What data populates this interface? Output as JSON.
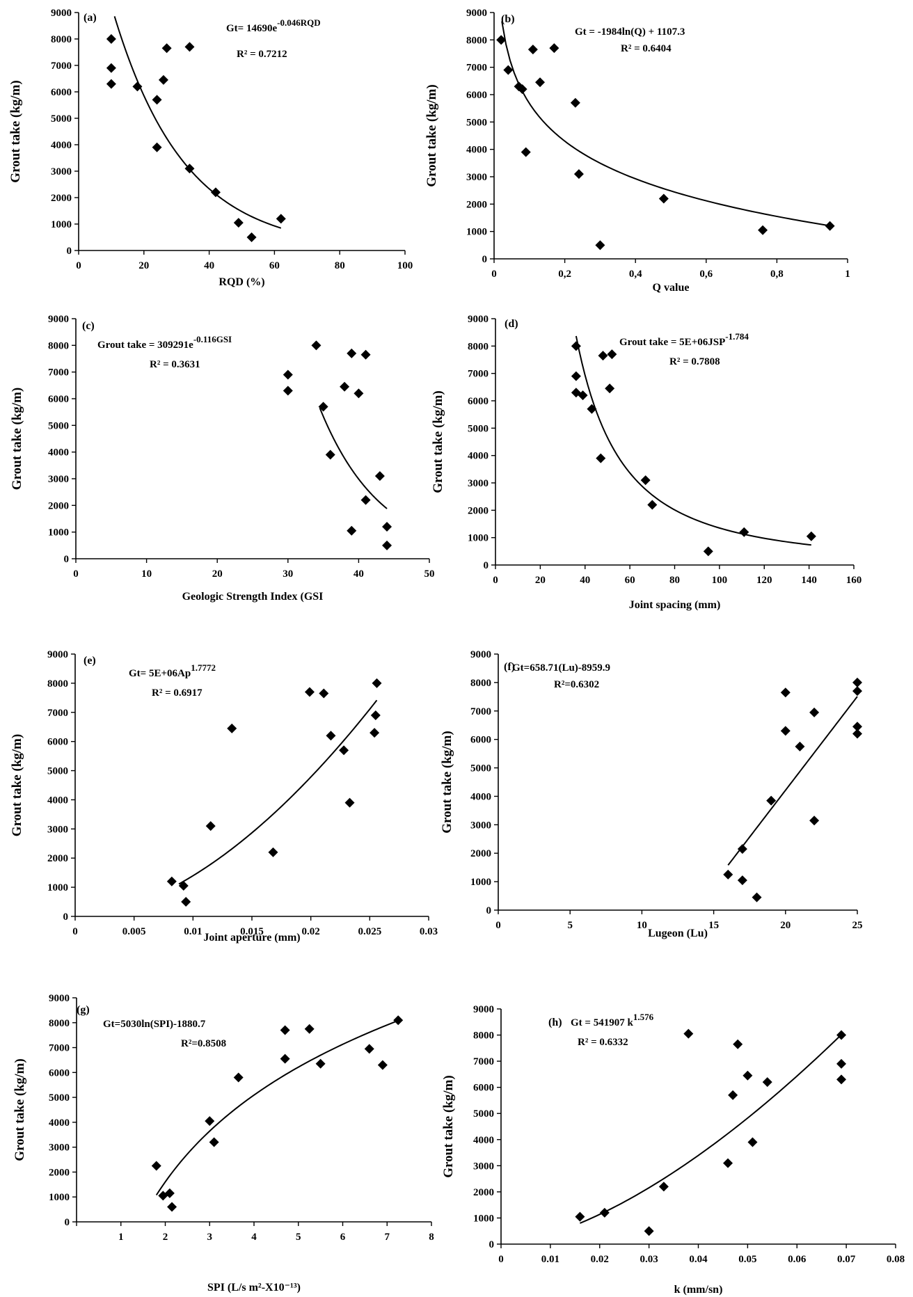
{
  "chart_data": [
    {
      "id": "a",
      "type": "scatter",
      "panel_label": "(a)",
      "xlabel": "RQD (%)",
      "ylabel": "Grout take (kg/m)",
      "xlim": [
        0,
        100
      ],
      "ylim": [
        0,
        9000
      ],
      "xticks": [
        0,
        20,
        40,
        60,
        80,
        100
      ],
      "xtick_labels": [
        "0",
        "20",
        "40",
        "60",
        "80",
        "100"
      ],
      "yticks": [
        0,
        1000,
        2000,
        3000,
        4000,
        5000,
        6000,
        7000,
        8000,
        9000
      ],
      "ytick_labels": [
        "0",
        "1000",
        "2000",
        "3000",
        "4000",
        "5000",
        "6000",
        "7000",
        "8000",
        "9000"
      ],
      "points": [
        [
          10,
          8000
        ],
        [
          10,
          6900
        ],
        [
          10,
          6300
        ],
        [
          18,
          6200
        ],
        [
          24,
          5700
        ],
        [
          24,
          3900
        ],
        [
          26,
          6450
        ],
        [
          27,
          7650
        ],
        [
          34,
          7700
        ],
        [
          34,
          3100
        ],
        [
          42,
          2200
        ],
        [
          49,
          1050
        ],
        [
          53,
          500
        ],
        [
          62,
          1200
        ]
      ],
      "fit": {
        "kind": "exp",
        "a": 14690,
        "b": -0.046,
        "x_range": [
          11,
          62
        ]
      },
      "equation": "Gt= 14690e",
      "equation_sup": "-0.046RQD",
      "r2": "R² = 0.7212"
    },
    {
      "id": "b",
      "type": "scatter",
      "panel_label": "(b)",
      "xlabel": "Q value",
      "ylabel": "Grout take (kg/m)",
      "xlim": [
        0,
        1
      ],
      "ylim": [
        0,
        9000
      ],
      "xticks": [
        0,
        0.2,
        0.4,
        0.6,
        0.8,
        1
      ],
      "xtick_labels": [
        "0",
        "0,2",
        "0,4",
        "0,6",
        "0,8",
        "1"
      ],
      "yticks": [
        0,
        1000,
        2000,
        3000,
        4000,
        5000,
        6000,
        7000,
        8000,
        9000
      ],
      "ytick_labels": [
        "0",
        "1000",
        "2000",
        "3000",
        "4000",
        "5000",
        "6000",
        "7000",
        "8000",
        "9000"
      ],
      "points": [
        [
          0.02,
          8000
        ],
        [
          0.04,
          6900
        ],
        [
          0.07,
          6300
        ],
        [
          0.08,
          6200
        ],
        [
          0.09,
          3900
        ],
        [
          0.11,
          7650
        ],
        [
          0.13,
          6450
        ],
        [
          0.17,
          7700
        ],
        [
          0.23,
          5700
        ],
        [
          0.24,
          3100
        ],
        [
          0.3,
          500
        ],
        [
          0.48,
          2200
        ],
        [
          0.76,
          1050
        ],
        [
          0.95,
          1200
        ]
      ],
      "fit": {
        "kind": "ln",
        "a": -1984,
        "b": 1107.3,
        "x_range": [
          0.022,
          0.95
        ]
      },
      "equation": "Gt = -1984ln(Q) + 1107.3",
      "r2": "R² = 0.6404"
    },
    {
      "id": "c",
      "type": "scatter",
      "panel_label": "(c)",
      "xlabel": "Geologic Strength Index (GSI",
      "ylabel": "Grout take (kg/m)",
      "xlim": [
        0,
        50
      ],
      "ylim": [
        0,
        9000
      ],
      "xticks": [
        0,
        10,
        20,
        30,
        40,
        50
      ],
      "xtick_labels": [
        "0",
        "10",
        "20",
        "30",
        "40",
        "50"
      ],
      "yticks": [
        0,
        1000,
        2000,
        3000,
        4000,
        5000,
        6000,
        7000,
        8000,
        9000
      ],
      "ytick_labels": [
        "0",
        "1000",
        "2000",
        "3000",
        "4000",
        "5000",
        "6000",
        "7000",
        "8000",
        "9000"
      ],
      "points": [
        [
          30,
          6900
        ],
        [
          30,
          6300
        ],
        [
          34,
          8000
        ],
        [
          35,
          5700
        ],
        [
          36,
          3900
        ],
        [
          38,
          6450
        ],
        [
          39,
          7700
        ],
        [
          40,
          6200
        ],
        [
          41,
          7650
        ],
        [
          41,
          2200
        ],
        [
          39,
          1050
        ],
        [
          43,
          3100
        ],
        [
          44,
          1200
        ],
        [
          44,
          500
        ]
      ],
      "fit": {
        "kind": "exp",
        "a": 309291,
        "b": -0.116,
        "x_range": [
          34.5,
          44
        ]
      },
      "equation": "Grout take  = 309291e",
      "equation_sup": "-0.116GSI",
      "r2": "R² = 0.3631"
    },
    {
      "id": "d",
      "type": "scatter",
      "panel_label": "(d)",
      "xlabel": "Joint spacing (mm)",
      "ylabel": "Grout take (kg/m)",
      "xlim": [
        0,
        160
      ],
      "ylim": [
        0,
        9000
      ],
      "xticks": [
        0,
        20,
        40,
        60,
        80,
        100,
        120,
        140,
        160
      ],
      "xtick_labels": [
        "0",
        "20",
        "40",
        "60",
        "80",
        "100",
        "120",
        "140",
        "160"
      ],
      "yticks": [
        0,
        1000,
        2000,
        3000,
        4000,
        5000,
        6000,
        7000,
        8000,
        9000
      ],
      "ytick_labels": [
        "0",
        "1000",
        "2000",
        "3000",
        "4000",
        "5000",
        "6000",
        "7000",
        "8000",
        "9000"
      ],
      "points": [
        [
          36,
          8000
        ],
        [
          36,
          6900
        ],
        [
          36,
          6300
        ],
        [
          39,
          6200
        ],
        [
          43,
          5700
        ],
        [
          47,
          3900
        ],
        [
          48,
          7650
        ],
        [
          51,
          6450
        ],
        [
          52,
          7700
        ],
        [
          67,
          3100
        ],
        [
          70,
          2200
        ],
        [
          95,
          500
        ],
        [
          111,
          1200
        ],
        [
          141,
          1050
        ]
      ],
      "fit": {
        "kind": "pow",
        "a": 5000000,
        "b": -1.784,
        "x_range": [
          36,
          141
        ]
      },
      "equation": "Grout take = 5E+06JSP",
      "equation_sup": "-1.784",
      "r2": "R² = 0.7808"
    },
    {
      "id": "e",
      "type": "scatter",
      "panel_label": "(e)",
      "xlabel": "Joint aperture (mm)",
      "ylabel": "Grout take (kg/m)",
      "xlim": [
        0,
        0.03
      ],
      "ylim": [
        0,
        9000
      ],
      "xticks": [
        0,
        0.005,
        0.01,
        0.015,
        0.02,
        0.025,
        0.03
      ],
      "xtick_labels": [
        "0",
        "0.005",
        "0.01",
        "0.015",
        "0.02",
        "0.025",
        "0.03"
      ],
      "yticks": [
        0,
        1000,
        2000,
        3000,
        4000,
        5000,
        6000,
        7000,
        8000,
        9000
      ],
      "ytick_labels": [
        "0",
        "1000",
        "2000",
        "3000",
        "4000",
        "5000",
        "6000",
        "7000",
        "8000",
        "9000"
      ],
      "points": [
        [
          0.0082,
          1200
        ],
        [
          0.0092,
          1050
        ],
        [
          0.0094,
          500
        ],
        [
          0.0115,
          3100
        ],
        [
          0.0133,
          6450
        ],
        [
          0.0168,
          2200
        ],
        [
          0.0199,
          7700
        ],
        [
          0.0211,
          7650
        ],
        [
          0.0217,
          6200
        ],
        [
          0.0228,
          5700
        ],
        [
          0.0233,
          3900
        ],
        [
          0.0254,
          6300
        ],
        [
          0.0255,
          6900
        ],
        [
          0.0256,
          8000
        ]
      ],
      "fit": {
        "kind": "pow",
        "a": 5000000,
        "b": 1.7772,
        "x_range": [
          0.0088,
          0.0256
        ]
      },
      "equation": "Gt= 5E+06Ap",
      "equation_sup": "1.7772",
      "r2": "R² = 0.6917"
    },
    {
      "id": "f",
      "type": "scatter",
      "panel_label": "(f)",
      "xlabel": "Lugeon (Lu)",
      "ylabel": "Grout take (kg/m)",
      "xlim": [
        0,
        25
      ],
      "ylim": [
        0,
        9000
      ],
      "xticks": [
        0,
        5,
        10,
        15,
        20,
        25
      ],
      "xtick_labels": [
        "0",
        "5",
        "10",
        "15",
        "20",
        "25"
      ],
      "yticks": [
        0,
        1000,
        2000,
        3000,
        4000,
        5000,
        6000,
        7000,
        8000,
        9000
      ],
      "ytick_labels": [
        "0",
        "1000",
        "2000",
        "3000",
        "4000",
        "5000",
        "6000",
        "7000",
        "8000",
        "9000"
      ],
      "points": [
        [
          16,
          1250
        ],
        [
          17,
          2150
        ],
        [
          17,
          1050
        ],
        [
          18,
          450
        ],
        [
          19,
          3850
        ],
        [
          20,
          7650
        ],
        [
          20,
          6300
        ],
        [
          21,
          5750
        ],
        [
          22,
          6950
        ],
        [
          22,
          3150
        ],
        [
          25,
          8000
        ],
        [
          25,
          7700
        ],
        [
          25,
          6450
        ],
        [
          25,
          6200
        ]
      ],
      "fit": {
        "kind": "lin",
        "a": 658.71,
        "b": -8959.9,
        "x_range": [
          16,
          25
        ]
      },
      "equation": "Gt=658.71(Lu)-8959.9",
      "r2": "R²=0.6302"
    },
    {
      "id": "g",
      "type": "scatter",
      "panel_label": "(g)",
      "xlabel": "SPI (L/s m²-X10⁻¹³)",
      "ylabel": "Grout take (kg/m)",
      "xlim": [
        0,
        8
      ],
      "ylim": [
        0,
        9000
      ],
      "xticks": [
        0,
        1,
        2,
        3,
        4,
        5,
        6,
        7,
        8
      ],
      "xtick_labels": [
        "",
        "1",
        "2",
        "3",
        "4",
        "5",
        "6",
        "7",
        "8"
      ],
      "yticks": [
        0,
        1000,
        2000,
        3000,
        4000,
        5000,
        6000,
        7000,
        8000,
        9000
      ],
      "ytick_labels": [
        "0",
        "1000",
        "2000",
        "3000",
        "4000",
        "5000",
        "6000",
        "7000",
        "8000",
        "9000"
      ],
      "points": [
        [
          1.8,
          2250
        ],
        [
          1.95,
          1050
        ],
        [
          2.1,
          1150
        ],
        [
          2.15,
          600
        ],
        [
          3.0,
          4050
        ],
        [
          3.1,
          3200
        ],
        [
          3.65,
          5800
        ],
        [
          4.7,
          7700
        ],
        [
          4.7,
          6550
        ],
        [
          5.25,
          7750
        ],
        [
          5.5,
          6350
        ],
        [
          6.6,
          6950
        ],
        [
          6.9,
          6300
        ],
        [
          7.25,
          8100
        ]
      ],
      "fit": {
        "kind": "ln",
        "a": 5030,
        "b": -1880.7,
        "x_range": [
          1.8,
          7.25
        ]
      },
      "equation": "Gt=5030ln(SPI)-1880.7",
      "r2": "R²=0.8508"
    },
    {
      "id": "h",
      "type": "scatter",
      "panel_label": "(h)",
      "xlabel": "k (mm/sn)",
      "ylabel": "Grout take (kg/m)",
      "xlim": [
        0,
        0.08
      ],
      "ylim": [
        0,
        9000
      ],
      "xticks": [
        0,
        0.01,
        0.02,
        0.03,
        0.04,
        0.05,
        0.06,
        0.07,
        0.08
      ],
      "xtick_labels": [
        "0",
        "0.01",
        "0.02",
        "0.03",
        "0.04",
        "0.05",
        "0.06",
        "0.07",
        "0.08"
      ],
      "yticks": [
        0,
        1000,
        2000,
        3000,
        4000,
        5000,
        6000,
        7000,
        8000,
        9000
      ],
      "ytick_labels": [
        "0",
        "1000",
        "2000",
        "3000",
        "4000",
        "5000",
        "6000",
        "7000",
        "8000",
        "9000"
      ],
      "points": [
        [
          0.016,
          1050
        ],
        [
          0.021,
          1200
        ],
        [
          0.03,
          500
        ],
        [
          0.033,
          2200
        ],
        [
          0.038,
          8050
        ],
        [
          0.046,
          3100
        ],
        [
          0.047,
          5700
        ],
        [
          0.048,
          7650
        ],
        [
          0.05,
          6450
        ],
        [
          0.051,
          3900
        ],
        [
          0.054,
          6200
        ],
        [
          0.069,
          8000
        ],
        [
          0.069,
          6900
        ],
        [
          0.069,
          6300
        ]
      ],
      "fit": {
        "kind": "pow",
        "a": 541907,
        "b": 1.576,
        "x_range": [
          0.016,
          0.069
        ]
      },
      "equation": "Gt = 541907 k",
      "equation_sup": "1.576",
      "r2": "R² = 0.6332"
    }
  ]
}
